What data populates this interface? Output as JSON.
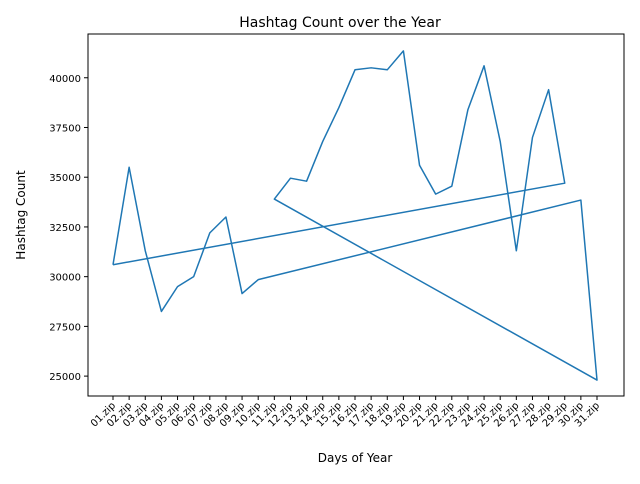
{
  "chart_data": {
    "type": "line",
    "title": "Hashtag Count over the Year",
    "xlabel": "Days of Year",
    "ylabel": "Hashtag Count",
    "categories": [
      "01.zip",
      "02.zip",
      "03.zip",
      "04.zip",
      "05.zip",
      "06.zip",
      "07.zip",
      "08.zip",
      "09.zip",
      "10.zip",
      "11.zip",
      "12.zip",
      "13.zip",
      "14.zip",
      "15.zip",
      "16.zip",
      "17.zip",
      "18.zip",
      "19.zip",
      "20.zip",
      "21.zip",
      "22.zip",
      "23.zip",
      "24.zip",
      "25.zip",
      "26.zip",
      "27.zip",
      "28.zip",
      "29.zip",
      "30.zip",
      "31.zip"
    ],
    "points": [
      {
        "x": "01.zip",
        "y": 30600
      },
      {
        "x": "02.zip",
        "y": 35500
      },
      {
        "x": "03.zip",
        "y": 31300
      },
      {
        "x": "04.zip",
        "y": 28250
      },
      {
        "x": "05.zip",
        "y": 29500
      },
      {
        "x": "06.zip",
        "y": 30000
      },
      {
        "x": "07.zip",
        "y": 32200
      },
      {
        "x": "08.zip",
        "y": 33000
      },
      {
        "x": "09.zip",
        "y": 29150
      },
      {
        "x": "10.zip",
        "y": 29850
      },
      {
        "x": "30.zip",
        "y": 33850
      },
      {
        "x": "31.zip",
        "y": 24800
      },
      {
        "x": "11.zip",
        "y": 33900
      },
      {
        "x": "12.zip",
        "y": 34950
      },
      {
        "x": "13.zip",
        "y": 34800
      },
      {
        "x": "14.zip",
        "y": 36800
      },
      {
        "x": "15.zip",
        "y": 38500
      },
      {
        "x": "16.zip",
        "y": 40400
      },
      {
        "x": "17.zip",
        "y": 40500
      },
      {
        "x": "18.zip",
        "y": 40400
      },
      {
        "x": "19.zip",
        "y": 41350
      },
      {
        "x": "20.zip",
        "y": 35600
      },
      {
        "x": "21.zip",
        "y": 34150
      },
      {
        "x": "22.zip",
        "y": 34550
      },
      {
        "x": "23.zip",
        "y": 38400
      },
      {
        "x": "24.zip",
        "y": 40600
      },
      {
        "x": "25.zip",
        "y": 36800
      },
      {
        "x": "26.zip",
        "y": 31300
      },
      {
        "x": "27.zip",
        "y": 37000
      },
      {
        "x": "28.zip",
        "y": 39400
      },
      {
        "x": "29.zip",
        "y": 34700
      },
      {
        "x": "01.zip",
        "y": 30600
      }
    ],
    "yticks": [
      25000,
      27500,
      30000,
      32500,
      35000,
      37500,
      40000
    ],
    "ylim": [
      24000,
      42200
    ],
    "grid": false,
    "legend": "none",
    "line_color": "#1f77b4"
  }
}
